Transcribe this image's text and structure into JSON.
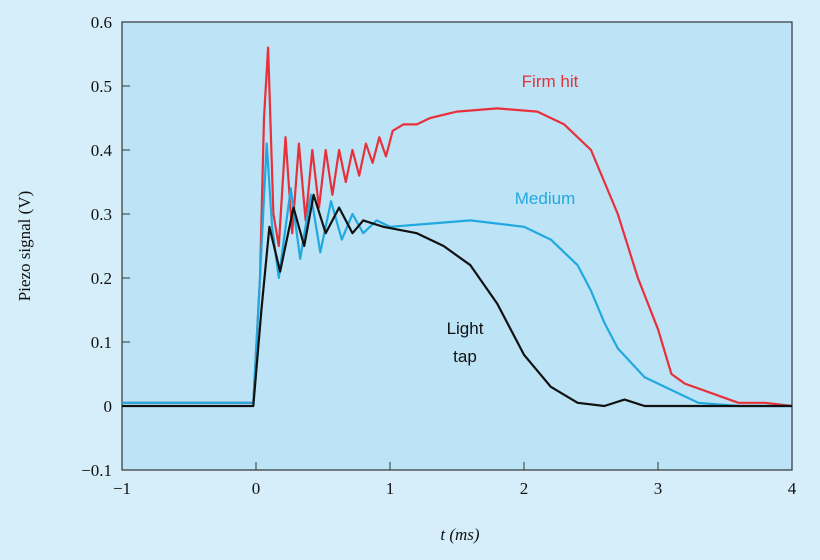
{
  "chart_data": {
    "type": "line",
    "xlabel": "t (ms)",
    "ylabel": "Piezo signal (V)",
    "xlim": [
      -1,
      4
    ],
    "ylim": [
      -0.1,
      0.6
    ],
    "xticks": [
      {
        "value": -1,
        "label": "−1"
      },
      0,
      1,
      2,
      3,
      4
    ],
    "yticks": [
      {
        "value": -0.1,
        "label": "−0.1"
      },
      0,
      0.1,
      0.2,
      0.3,
      0.4,
      0.5,
      0.6
    ],
    "series": [
      {
        "name": "Firm hit",
        "color": "#e8303a",
        "x": [
          -1,
          -0.5,
          -0.02,
          0.03,
          0.06,
          0.09,
          0.13,
          0.17,
          0.22,
          0.27,
          0.32,
          0.37,
          0.42,
          0.47,
          0.52,
          0.57,
          0.62,
          0.67,
          0.72,
          0.77,
          0.82,
          0.87,
          0.92,
          0.97,
          1.02,
          1.1,
          1.2,
          1.3,
          1.5,
          1.8,
          2.1,
          2.3,
          2.5,
          2.7,
          2.85,
          3.0,
          3.1,
          3.2,
          3.4,
          3.6,
          3.8,
          4
        ],
        "values": [
          0.005,
          0.005,
          0.005,
          0.2,
          0.45,
          0.56,
          0.3,
          0.25,
          0.42,
          0.27,
          0.41,
          0.29,
          0.4,
          0.31,
          0.4,
          0.33,
          0.4,
          0.35,
          0.4,
          0.36,
          0.41,
          0.38,
          0.42,
          0.39,
          0.43,
          0.44,
          0.44,
          0.45,
          0.46,
          0.465,
          0.46,
          0.44,
          0.4,
          0.3,
          0.2,
          0.12,
          0.05,
          0.035,
          0.02,
          0.005,
          0.005,
          0
        ]
      },
      {
        "name": "Medium",
        "color": "#22a8e0",
        "x": [
          -1,
          -0.5,
          -0.02,
          0.03,
          0.08,
          0.12,
          0.17,
          0.26,
          0.33,
          0.41,
          0.48,
          0.56,
          0.64,
          0.72,
          0.8,
          0.9,
          1.0,
          1.3,
          1.6,
          2.0,
          2.2,
          2.4,
          2.5,
          2.6,
          2.7,
          2.9,
          3.1,
          3.3,
          3.6,
          4
        ],
        "values": [
          0.005,
          0.005,
          0.005,
          0.2,
          0.41,
          0.28,
          0.2,
          0.34,
          0.23,
          0.33,
          0.24,
          0.32,
          0.26,
          0.3,
          0.27,
          0.29,
          0.28,
          0.285,
          0.29,
          0.28,
          0.26,
          0.22,
          0.18,
          0.13,
          0.09,
          0.045,
          0.025,
          0.005,
          0,
          0
        ]
      },
      {
        "name": "Light tap",
        "color": "#111111",
        "x": [
          -1,
          -0.5,
          -0.02,
          0.04,
          0.1,
          0.18,
          0.28,
          0.36,
          0.43,
          0.52,
          0.62,
          0.72,
          0.8,
          0.95,
          1.2,
          1.4,
          1.6,
          1.8,
          2.0,
          2.2,
          2.4,
          2.6,
          2.75,
          2.9,
          4
        ],
        "values": [
          0,
          0,
          0,
          0.15,
          0.28,
          0.21,
          0.31,
          0.25,
          0.33,
          0.27,
          0.31,
          0.27,
          0.29,
          0.28,
          0.27,
          0.25,
          0.22,
          0.16,
          0.08,
          0.03,
          0.005,
          0,
          0.01,
          0,
          0
        ]
      }
    ]
  }
}
